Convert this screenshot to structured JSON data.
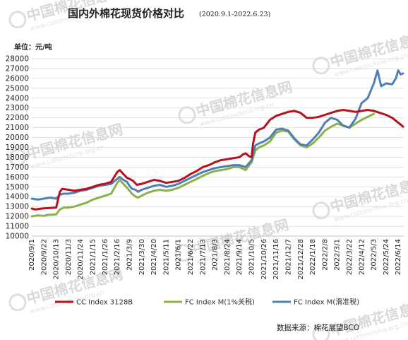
{
  "chart_data": {
    "type": "line",
    "title": "国内外棉花现货价格对比",
    "subtitle": "(2020.9.1-2022.6.23)",
    "unit_label": "单位：元/吨",
    "source": "数据来源：棉花展望BCO",
    "watermark": "中国棉花信息网",
    "watermark_url": "www.cottonchina.org.cn",
    "ylim": [
      10000,
      28000
    ],
    "ystep": 1000,
    "yticks": [
      "10000",
      "11000",
      "12000",
      "13000",
      "14000",
      "15000",
      "16000",
      "17000",
      "18000",
      "19000",
      "20000",
      "21000",
      "22000",
      "23000",
      "24000",
      "25000",
      "26000",
      "27000",
      "28000"
    ],
    "xticks": [
      "2020/9/1",
      "2020/9/22",
      "2020/10/13",
      "2020/11/3",
      "2020/11/24",
      "2021/1/15",
      "2021/1/26",
      "2021/2/16",
      "2021/3/9",
      "2021/3/30",
      "2021/4/20",
      "2021/5/11",
      "2021/6/1",
      "2021/6/22",
      "2021/7/13",
      "2021/8/3",
      "2021/8/24",
      "2021/9/14",
      "2021/10/5",
      "2021/10/26",
      "2021/11/16",
      "2021/12/7",
      "2021/12/28",
      "2022/1/18",
      "2022/2/8",
      "2022/3/1",
      "2022/3/22",
      "2022/4/12",
      "2022/5/3",
      "2022/5/24",
      "2022/6/14"
    ],
    "x_range": [
      0,
      30.45
    ],
    "legend_position": "bottom",
    "series": [
      {
        "name": "CC Index 3128B",
        "color": "#b5121b",
        "points": [
          [
            0,
            12800
          ],
          [
            0.3,
            12700
          ],
          [
            0.8,
            12800
          ],
          [
            1.5,
            12850
          ],
          [
            2.0,
            12900
          ],
          [
            2.3,
            14500
          ],
          [
            2.5,
            14800
          ],
          [
            3.0,
            14700
          ],
          [
            3.5,
            14600
          ],
          [
            4.0,
            14700
          ],
          [
            4.5,
            14800
          ],
          [
            5.0,
            15000
          ],
          [
            5.5,
            15200
          ],
          [
            6.0,
            15300
          ],
          [
            6.5,
            15500
          ],
          [
            7.0,
            16500
          ],
          [
            7.2,
            16700
          ],
          [
            7.5,
            16300
          ],
          [
            7.8,
            15900
          ],
          [
            8.0,
            15800
          ],
          [
            8.3,
            15600
          ],
          [
            8.6,
            15200
          ],
          [
            9.0,
            15300
          ],
          [
            9.5,
            15500
          ],
          [
            10.0,
            15700
          ],
          [
            10.5,
            15600
          ],
          [
            11.0,
            15400
          ],
          [
            11.5,
            15500
          ],
          [
            12.0,
            15600
          ],
          [
            12.5,
            15900
          ],
          [
            13.0,
            16300
          ],
          [
            13.5,
            16600
          ],
          [
            14.0,
            17000
          ],
          [
            14.5,
            17200
          ],
          [
            15.0,
            17500
          ],
          [
            15.5,
            17700
          ],
          [
            16.0,
            17800
          ],
          [
            16.5,
            17900
          ],
          [
            17.0,
            18000
          ],
          [
            17.3,
            18300
          ],
          [
            17.5,
            18400
          ],
          [
            17.8,
            18100
          ],
          [
            18.0,
            18000
          ],
          [
            18.1,
            19300
          ],
          [
            18.3,
            20500
          ],
          [
            18.6,
            20800
          ],
          [
            19.0,
            21000
          ],
          [
            19.5,
            21800
          ],
          [
            20.0,
            22200
          ],
          [
            20.5,
            22400
          ],
          [
            21.0,
            22600
          ],
          [
            21.5,
            22700
          ],
          [
            22.0,
            22500
          ],
          [
            22.5,
            22000
          ],
          [
            23.0,
            22000
          ],
          [
            23.5,
            22100
          ],
          [
            24.0,
            22300
          ],
          [
            24.5,
            22500
          ],
          [
            25.0,
            22700
          ],
          [
            25.5,
            22800
          ],
          [
            26.0,
            22700
          ],
          [
            26.5,
            22600
          ],
          [
            27.0,
            22700
          ],
          [
            27.5,
            22800
          ],
          [
            28.0,
            22700
          ],
          [
            28.5,
            22500
          ],
          [
            29.0,
            22300
          ],
          [
            29.5,
            22000
          ],
          [
            30.0,
            21500
          ],
          [
            30.2,
            21300
          ],
          [
            30.4,
            21100
          ]
        ]
      },
      {
        "name": "FC Index M(1%关税)",
        "color": "#8bb14a",
        "points": [
          [
            0,
            12000
          ],
          [
            0.5,
            12100
          ],
          [
            1.0,
            12050
          ],
          [
            1.3,
            12150
          ],
          [
            2.0,
            12200
          ],
          [
            2.3,
            12700
          ],
          [
            2.6,
            12900
          ],
          [
            3.0,
            12900
          ],
          [
            3.5,
            13000
          ],
          [
            4.0,
            13200
          ],
          [
            4.5,
            13400
          ],
          [
            5.0,
            13700
          ],
          [
            5.5,
            13900
          ],
          [
            6.0,
            14100
          ],
          [
            6.5,
            14300
          ],
          [
            7.0,
            15400
          ],
          [
            7.2,
            15700
          ],
          [
            7.5,
            15300
          ],
          [
            7.8,
            14900
          ],
          [
            8.0,
            14600
          ],
          [
            8.2,
            14300
          ],
          [
            8.5,
            14000
          ],
          [
            8.7,
            13900
          ],
          [
            9.0,
            14100
          ],
          [
            9.5,
            14400
          ],
          [
            10.0,
            14600
          ],
          [
            10.5,
            14700
          ],
          [
            11.0,
            14600
          ],
          [
            11.5,
            14700
          ],
          [
            12.0,
            14900
          ],
          [
            12.5,
            15200
          ],
          [
            13.0,
            15500
          ],
          [
            13.5,
            15800
          ],
          [
            14.0,
            16100
          ],
          [
            14.5,
            16400
          ],
          [
            15.0,
            16600
          ],
          [
            15.5,
            16700
          ],
          [
            16.0,
            16800
          ],
          [
            16.5,
            17000
          ],
          [
            17.0,
            17000
          ],
          [
            17.5,
            16700
          ],
          [
            18.0,
            17500
          ],
          [
            18.3,
            18700
          ],
          [
            18.6,
            19000
          ],
          [
            19.0,
            19200
          ],
          [
            19.5,
            19600
          ],
          [
            20.0,
            20500
          ],
          [
            20.5,
            20700
          ],
          [
            21.0,
            20600
          ],
          [
            21.5,
            19800
          ],
          [
            22.0,
            19200
          ],
          [
            22.5,
            19000
          ],
          [
            23.0,
            19400
          ],
          [
            23.5,
            20000
          ],
          [
            24.0,
            20700
          ],
          [
            24.5,
            21100
          ],
          [
            25.0,
            21400
          ],
          [
            25.5,
            21200
          ],
          [
            26.0,
            21000
          ],
          [
            26.5,
            21400
          ],
          [
            27.0,
            21800
          ],
          [
            27.5,
            22100
          ],
          [
            28.0,
            22400
          ]
        ]
      },
      {
        "name": "FC Index M(滑准税)",
        "color": "#4e7fb5",
        "points": [
          [
            0,
            13800
          ],
          [
            0.5,
            13700
          ],
          [
            1.0,
            13800
          ],
          [
            1.5,
            13900
          ],
          [
            2.0,
            13800
          ],
          [
            2.3,
            14200
          ],
          [
            2.6,
            14300
          ],
          [
            3.0,
            14300
          ],
          [
            3.5,
            14400
          ],
          [
            4.0,
            14600
          ],
          [
            4.5,
            14700
          ],
          [
            5.0,
            14900
          ],
          [
            5.5,
            15100
          ],
          [
            6.0,
            15200
          ],
          [
            6.5,
            15300
          ],
          [
            7.0,
            15800
          ],
          [
            7.2,
            16000
          ],
          [
            7.5,
            15700
          ],
          [
            7.8,
            15500
          ],
          [
            8.0,
            15100
          ],
          [
            8.2,
            14800
          ],
          [
            8.5,
            14700
          ],
          [
            8.7,
            14500
          ],
          [
            9.0,
            14700
          ],
          [
            9.5,
            14900
          ],
          [
            10.0,
            15100
          ],
          [
            10.5,
            15200
          ],
          [
            11.0,
            15000
          ],
          [
            11.5,
            15100
          ],
          [
            12.0,
            15300
          ],
          [
            12.5,
            15600
          ],
          [
            13.0,
            15900
          ],
          [
            13.5,
            16200
          ],
          [
            14.0,
            16500
          ],
          [
            14.5,
            16700
          ],
          [
            15.0,
            16900
          ],
          [
            15.5,
            17000
          ],
          [
            16.0,
            17100
          ],
          [
            16.5,
            17200
          ],
          [
            17.0,
            17200
          ],
          [
            17.5,
            17000
          ],
          [
            18.0,
            17700
          ],
          [
            18.3,
            19200
          ],
          [
            18.6,
            19400
          ],
          [
            19.0,
            19600
          ],
          [
            19.5,
            20000
          ],
          [
            20.0,
            20800
          ],
          [
            20.5,
            20900
          ],
          [
            21.0,
            20700
          ],
          [
            21.5,
            19900
          ],
          [
            22.0,
            19300
          ],
          [
            22.5,
            19200
          ],
          [
            23.0,
            19800
          ],
          [
            23.5,
            20500
          ],
          [
            24.0,
            21500
          ],
          [
            24.5,
            22000
          ],
          [
            25.0,
            21800
          ],
          [
            25.5,
            21200
          ],
          [
            26.0,
            21000
          ],
          [
            26.5,
            21900
          ],
          [
            27.0,
            23500
          ],
          [
            27.5,
            24000
          ],
          [
            28.0,
            25500
          ],
          [
            28.3,
            26800
          ],
          [
            28.6,
            25200
          ],
          [
            29.0,
            25500
          ],
          [
            29.5,
            25400
          ],
          [
            29.8,
            26000
          ],
          [
            30.0,
            26800
          ],
          [
            30.2,
            26400
          ],
          [
            30.4,
            26500
          ]
        ]
      }
    ]
  }
}
